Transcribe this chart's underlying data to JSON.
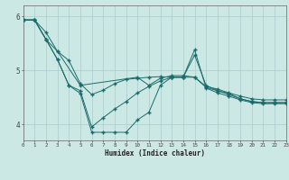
{
  "xlabel": "Humidex (Indice chaleur)",
  "bg_color": "#cce8e4",
  "line_color": "#1a6b6b",
  "grid_color": "#aacccc",
  "xlim": [
    0,
    23
  ],
  "ylim": [
    3.7,
    6.2
  ],
  "yticks": [
    4,
    5,
    6
  ],
  "xticks": [
    0,
    1,
    2,
    3,
    4,
    5,
    6,
    7,
    8,
    9,
    10,
    11,
    12,
    13,
    14,
    15,
    16,
    17,
    18,
    19,
    20,
    21,
    22,
    23
  ],
  "line1": {
    "x": [
      0,
      1,
      2,
      3,
      4,
      5,
      6,
      7,
      8,
      9,
      10,
      11,
      12,
      13,
      14,
      15,
      16,
      17,
      18,
      19,
      20,
      21,
      22,
      23
    ],
    "y": [
      5.93,
      5.93,
      5.7,
      5.35,
      5.18,
      4.75,
      4.55,
      4.63,
      4.75,
      4.83,
      4.85,
      4.87,
      4.88,
      4.87,
      4.87,
      4.87,
      4.7,
      4.65,
      4.58,
      4.52,
      4.47,
      4.45,
      4.45,
      4.45
    ]
  },
  "line2": {
    "x": [
      0,
      1,
      2,
      3,
      4,
      5,
      6,
      7,
      8,
      9,
      10,
      11,
      12,
      13,
      14,
      15,
      16,
      17,
      18,
      19,
      20,
      21,
      22,
      23
    ],
    "y": [
      5.93,
      5.93,
      5.57,
      5.2,
      4.72,
      4.62,
      3.95,
      4.12,
      4.28,
      4.42,
      4.58,
      4.7,
      4.8,
      4.87,
      4.87,
      5.28,
      4.72,
      4.62,
      4.57,
      4.47,
      4.42,
      4.4,
      4.4,
      4.4
    ]
  },
  "line3": {
    "x": [
      0,
      1,
      2,
      3,
      4,
      5,
      6,
      7,
      8,
      9,
      10,
      11,
      12,
      13,
      14,
      15,
      16,
      17,
      18,
      19,
      20,
      21,
      22,
      23
    ],
    "y": [
      5.93,
      5.93,
      5.57,
      5.2,
      4.72,
      4.57,
      3.85,
      3.85,
      3.85,
      3.85,
      4.08,
      4.22,
      4.72,
      4.87,
      4.87,
      5.38,
      4.67,
      4.58,
      4.52,
      4.45,
      4.4,
      4.38,
      4.38,
      4.38
    ]
  },
  "line4": {
    "x": [
      0,
      1,
      2,
      3,
      5,
      10,
      11,
      12,
      13,
      14,
      15,
      16,
      17,
      18,
      19,
      20,
      21,
      22,
      23
    ],
    "y": [
      5.93,
      5.93,
      5.57,
      5.35,
      4.72,
      4.87,
      4.72,
      4.85,
      4.9,
      4.9,
      4.87,
      4.68,
      4.62,
      4.55,
      4.47,
      4.42,
      4.4,
      4.4,
      4.4
    ]
  }
}
